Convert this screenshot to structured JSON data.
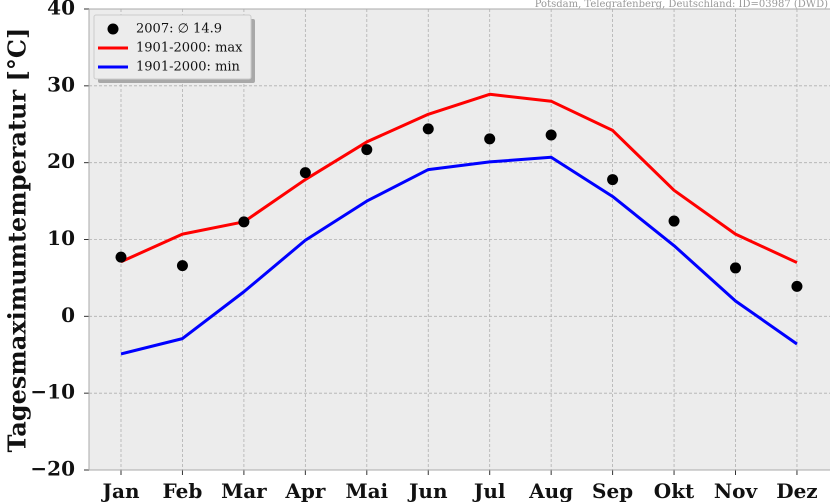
{
  "source_note": "Potsdam, Telegrafenberg, Deutschland: ID=03987 (DWD)",
  "chart_data": {
    "type": "line",
    "categories": [
      "Jan",
      "Feb",
      "Mar",
      "Apr",
      "Mai",
      "Jun",
      "Jul",
      "Aug",
      "Sep",
      "Okt",
      "Nov",
      "Dez"
    ],
    "ylabel": "Tagesmaximumtemperatur [°C]",
    "xlabel": "",
    "title": "",
    "ylim": [
      -20,
      40
    ],
    "yticks": [
      40,
      30,
      20,
      10,
      0,
      -10,
      -20
    ],
    "ytick_labels": [
      "40",
      "30",
      "20",
      "10",
      "0",
      "−10",
      "−20"
    ],
    "grid": true,
    "legend_position": "top-left",
    "series": [
      {
        "name": "2007: ∅ 14.9",
        "kind": "scatter",
        "color": "#000000",
        "values": [
          7.7,
          6.6,
          12.3,
          18.7,
          21.7,
          24.4,
          23.1,
          23.6,
          17.8,
          12.4,
          6.3,
          3.9
        ]
      },
      {
        "name": "1901-2000: max",
        "kind": "line",
        "color": "#ff0000",
        "values": [
          7.1,
          10.7,
          12.3,
          17.8,
          22.7,
          26.3,
          28.9,
          28.0,
          24.2,
          16.4,
          10.7,
          7.0
        ]
      },
      {
        "name": "1901-2000: min",
        "kind": "line",
        "color": "#0000ff",
        "values": [
          -4.9,
          -2.9,
          3.2,
          9.9,
          15.0,
          19.1,
          20.1,
          20.7,
          15.6,
          9.2,
          2.0,
          -3.6
        ]
      }
    ]
  }
}
